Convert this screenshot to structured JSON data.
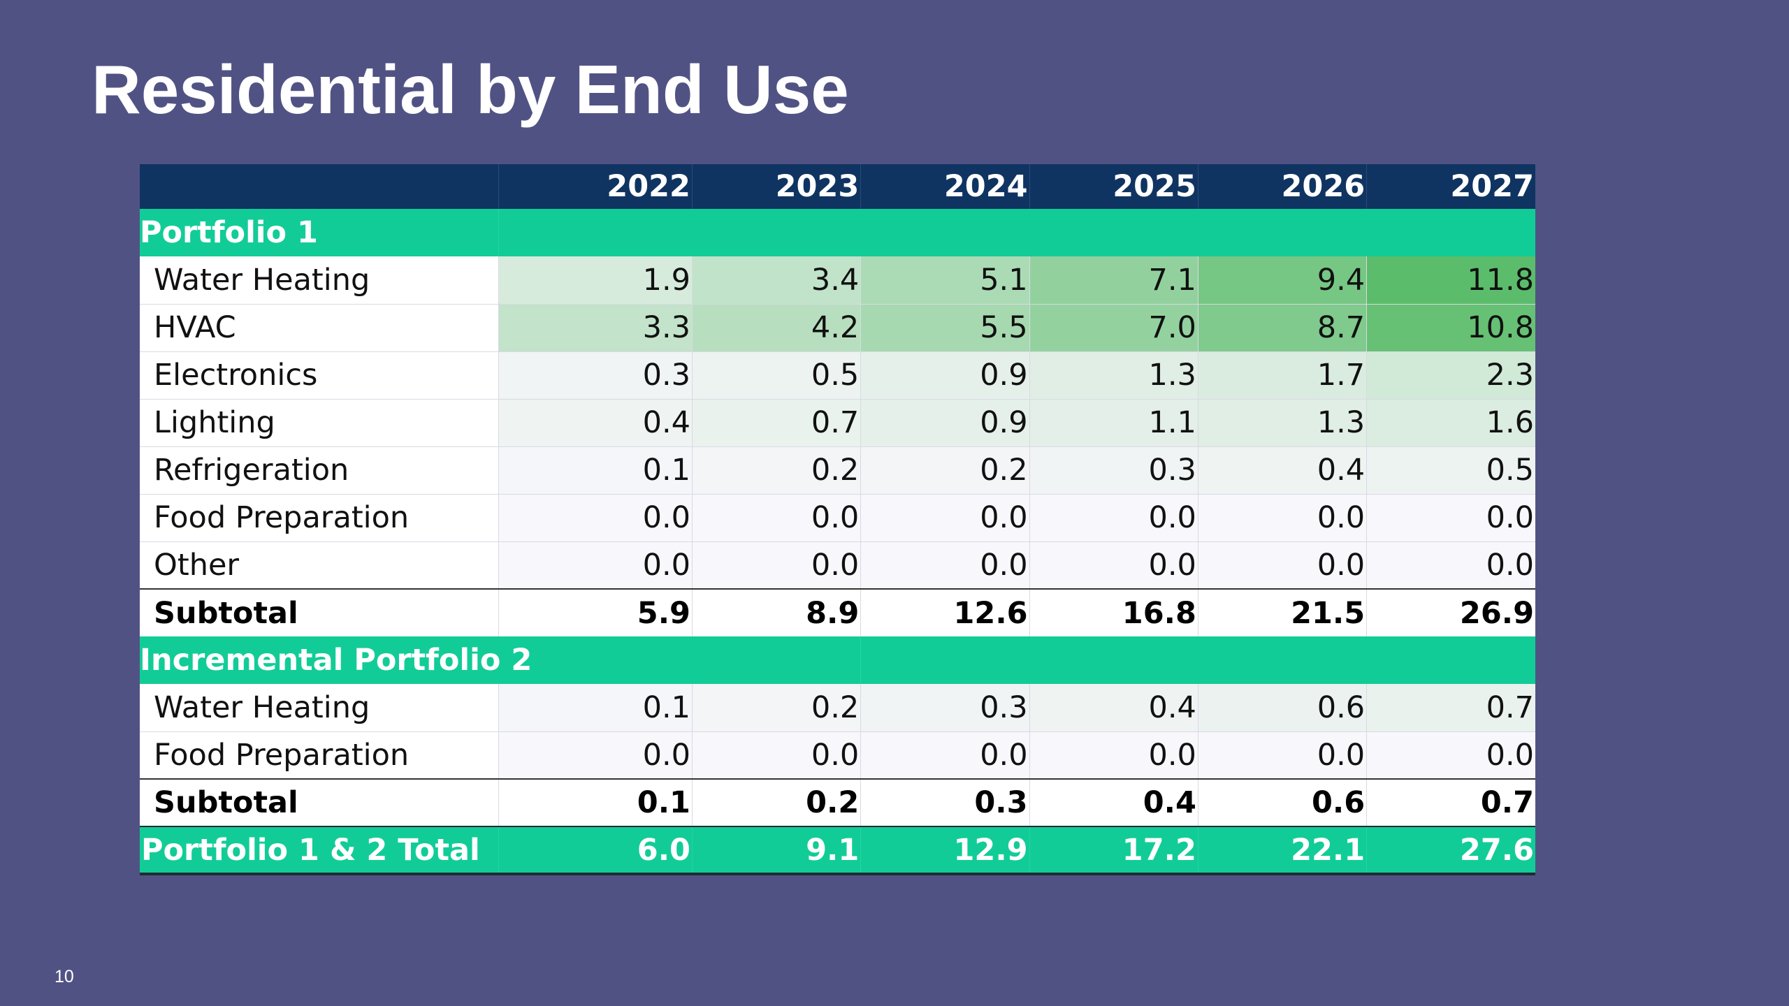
{
  "slide": {
    "title": "Residential by End Use",
    "page_number": "10"
  },
  "table": {
    "years": [
      "2022",
      "2023",
      "2024",
      "2025",
      "2026",
      "2027"
    ],
    "sections": [
      {
        "title": "Portfolio 1",
        "rows": [
          {
            "label": "Water Heating",
            "values": [
              "1.9",
              "3.4",
              "5.1",
              "7.1",
              "9.4",
              "11.8"
            ]
          },
          {
            "label": "HVAC",
            "values": [
              "3.3",
              "4.2",
              "5.5",
              "7.0",
              "8.7",
              "10.8"
            ]
          },
          {
            "label": "Electronics",
            "values": [
              "0.3",
              "0.5",
              "0.9",
              "1.3",
              "1.7",
              "2.3"
            ]
          },
          {
            "label": "Lighting",
            "values": [
              "0.4",
              "0.7",
              "0.9",
              "1.1",
              "1.3",
              "1.6"
            ]
          },
          {
            "label": "Refrigeration",
            "values": [
              "0.1",
              "0.2",
              "0.2",
              "0.3",
              "0.4",
              "0.5"
            ]
          },
          {
            "label": "Food Preparation",
            "values": [
              "0.0",
              "0.0",
              "0.0",
              "0.0",
              "0.0",
              "0.0"
            ]
          },
          {
            "label": "Other",
            "values": [
              "0.0",
              "0.0",
              "0.0",
              "0.0",
              "0.0",
              "0.0"
            ]
          }
        ],
        "subtotal": {
          "label": "Subtotal",
          "values": [
            "5.9",
            "8.9",
            "12.6",
            "16.8",
            "21.5",
            "26.9"
          ]
        }
      },
      {
        "title": "Incremental Portfolio 2",
        "rows": [
          {
            "label": "Water Heating",
            "values": [
              "0.1",
              "0.2",
              "0.3",
              "0.4",
              "0.6",
              "0.7"
            ]
          },
          {
            "label": "Food Preparation",
            "values": [
              "0.0",
              "0.0",
              "0.0",
              "0.0",
              "0.0",
              "0.0"
            ]
          }
        ],
        "subtotal": {
          "label": "Subtotal",
          "values": [
            "0.1",
            "0.2",
            "0.3",
            "0.4",
            "0.6",
            "0.7"
          ]
        }
      }
    ],
    "total": {
      "label": "Portfolio 1 & 2 Total",
      "values": [
        "6.0",
        "9.1",
        "12.9",
        "17.2",
        "22.1",
        "27.6"
      ]
    }
  },
  "colors": {
    "background": "#515284",
    "header_fill": "#0f3461",
    "section_fill": "#12cc97",
    "heat_low": "#f8f7fb",
    "heat_high": "#5bbd6b"
  }
}
